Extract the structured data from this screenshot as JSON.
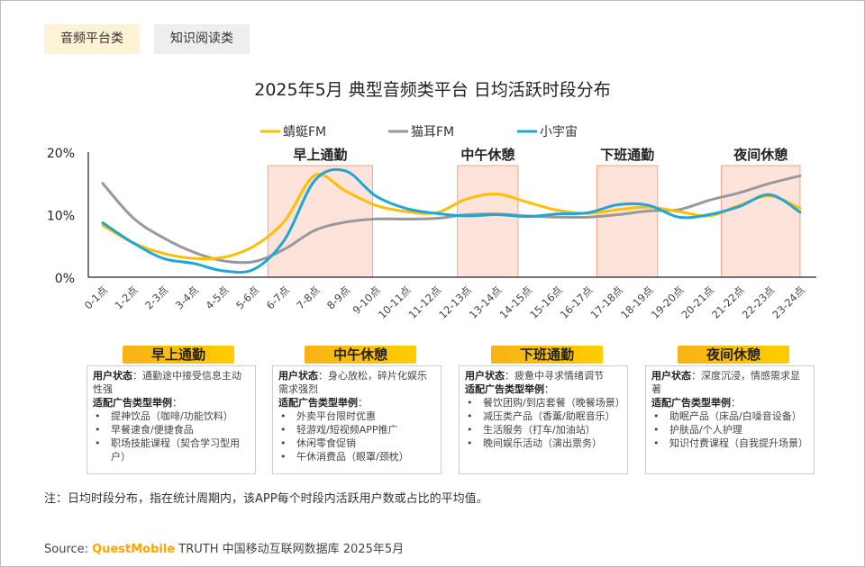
{
  "tabs": [
    "音频平台类",
    "知识阅读类"
  ],
  "title": "2025年5月 典型音频类平台 日均活跃时段分布",
  "colors": {
    "qingting": "#ffbf00",
    "maoer": "#999999",
    "xiaoyuzhou": "#1fa6d8",
    "band": "#fde3da",
    "band_border": "#f6a58a"
  },
  "chart_data": {
    "type": "line",
    "title": "2025年5月 典型音频类平台 日均活跃时段分布",
    "ylabel": "",
    "xlabel": "",
    "ylim": [
      0,
      20
    ],
    "yticks": [
      "0%",
      "10%",
      "20%"
    ],
    "legend_position": "top",
    "categories": [
      "0-1点",
      "1-2点",
      "2-3点",
      "3-4点",
      "4-5点",
      "5-6点",
      "6-7点",
      "7-8点",
      "8-9点",
      "9-10点",
      "10-11点",
      "11-12点",
      "12-13点",
      "13-14点",
      "14-15点",
      "15-16点",
      "16-17点",
      "17-18点",
      "18-19点",
      "19-20点",
      "20-21点",
      "21-22点",
      "22-23点",
      "23-24点"
    ],
    "series": [
      {
        "name": "蜻蜓FM",
        "color": "#ffbf00",
        "values": [
          8.3,
          5.5,
          3.8,
          3.0,
          3.2,
          5.0,
          9.0,
          16.3,
          13.8,
          11.5,
          10.5,
          10.3,
          12.5,
          13.3,
          12.0,
          10.7,
          10.2,
          10.8,
          11.2,
          10.5,
          9.8,
          11.5,
          13.0,
          11.0
        ]
      },
      {
        "name": "猫耳FM",
        "color": "#999999",
        "values": [
          15.0,
          9.5,
          6.3,
          4.0,
          2.6,
          2.5,
          4.5,
          7.5,
          8.8,
          9.3,
          9.3,
          9.4,
          10.0,
          10.1,
          9.8,
          9.6,
          9.6,
          10.0,
          10.6,
          10.8,
          12.3,
          13.5,
          15.0,
          16.2
        ]
      },
      {
        "name": "小宇宙",
        "color": "#1fa6d8",
        "values": [
          8.7,
          5.5,
          3.0,
          2.2,
          1.0,
          1.3,
          6.0,
          15.5,
          17.0,
          13.0,
          11.0,
          10.2,
          9.8,
          10.0,
          9.7,
          10.1,
          10.3,
          11.6,
          11.5,
          9.6,
          10.0,
          11.3,
          13.2,
          10.4
        ]
      }
    ],
    "annotations": [
      {
        "label": "早上通勤",
        "from": 5.45,
        "to": 8.9
      },
      {
        "label": "中午休憩",
        "from": 11.7,
        "to": 13.7
      },
      {
        "label": "下班通勤",
        "from": 16.3,
        "to": 18.3
      },
      {
        "label": "夜间休憩",
        "from": 20.4,
        "to": 23.0
      }
    ]
  },
  "cards": [
    {
      "title": "早上通勤",
      "state_label": "用户状态",
      "state": "通勤途中接受信息主动性强",
      "ads_label": "适配广告类型举例",
      "items": [
        "提神饮品（咖啡/功能饮料）",
        "早餐速食/便捷食品",
        "职场技能课程（契合学习型用户）"
      ]
    },
    {
      "title": "中午休憩",
      "state_label": "用户状态",
      "state": "身心放松，碎片化娱乐需求强烈",
      "ads_label": "适配广告类型举例",
      "items": [
        "外卖平台限时优惠",
        "轻游戏/短视频APP推广",
        "休闲零食促销",
        "午休消费品（眼罩/颈枕）"
      ]
    },
    {
      "title": "下班通勤",
      "state_label": "用户状态",
      "state": "疲惫中寻求情绪调节",
      "ads_label": "适配广告类型举例",
      "items": [
        "餐饮团购/到店套餐（晚餐场景）",
        "减压类产品（香薰/助眠音乐）",
        "生活服务（打车/加油站）",
        "晚间娱乐活动（演出票务）"
      ]
    },
    {
      "title": "夜间休憩",
      "state_label": "用户状态",
      "state": "深度沉浸，情感需求显著",
      "ads_label": "适配广告类型举例",
      "items": [
        "助眠产品（床品/白噪音设备）",
        "护肤品/个人护理",
        "知识付费课程（自我提升场景）"
      ]
    }
  ],
  "note": "注：日均时段分布，指在统计周期内，该APP每个时段内活跃用户数或占比的平均值。",
  "source": {
    "prefix": "Source:",
    "brand": "QuestMobile",
    "rest": " TRUTH 中国移动互联网数据库 2025年5月"
  }
}
